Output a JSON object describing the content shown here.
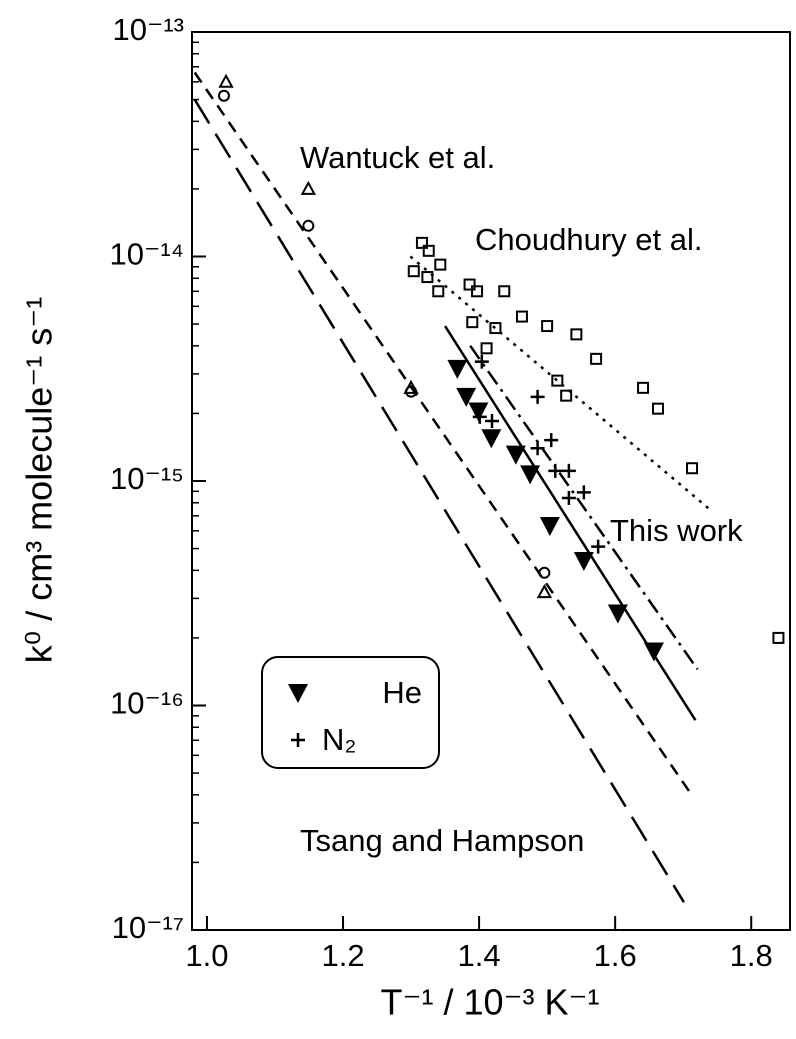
{
  "chart_data": {
    "type": "scatter",
    "xlabel": "T⁻¹ / 10⁻³ K⁻¹",
    "ylabel": "k⁰ / cm³ molecule⁻¹ s⁻¹",
    "xlim": [
      0.978,
      1.857
    ],
    "ylim": [
      1e-17,
      1e-13
    ],
    "log_y": true,
    "xticks": [
      {
        "value": 1.0,
        "label": "1.0"
      },
      1.2,
      1.4,
      1.6,
      1.8
    ],
    "yticks": [
      {
        "value": 1e-17,
        "label": "10⁻¹⁷"
      },
      {
        "value": 1e-16,
        "label": "10⁻¹⁶"
      },
      {
        "value": 1e-15,
        "label": "10⁻¹⁵"
      },
      {
        "value": 1e-14,
        "label": "10⁻¹⁴"
      },
      {
        "value": 1e-13,
        "label": "10⁻¹³"
      }
    ],
    "series": [
      {
        "name": "He",
        "marker": "triangle-down-filled",
        "color": "#000000",
        "x": [
          1.368,
          1.381,
          1.399,
          1.418,
          1.454,
          1.475,
          1.504,
          1.554,
          1.604,
          1.657
        ],
        "values": [
          3.16e-15,
          2.37e-15,
          2.04e-15,
          1.55e-15,
          1.31e-15,
          1.07e-15,
          6.3e-16,
          4.4e-16,
          2.57e-16,
          1.74e-16
        ]
      },
      {
        "name": "N₂",
        "marker": "plus",
        "color": "#000000",
        "x": [
          1.404,
          1.486,
          1.401,
          1.419,
          1.486,
          1.506,
          1.512,
          1.532,
          1.532,
          1.554,
          1.575
        ],
        "values": [
          3.4e-15,
          2.37e-15,
          1.93e-15,
          1.85e-15,
          1.4e-15,
          1.52e-15,
          1.11e-15,
          1.11e-15,
          8.4e-16,
          8.9e-16,
          5.1e-16
        ]
      }
    ],
    "other_series": [
      {
        "marker": "square-open",
        "color": "#000000",
        "x": [
          1.316,
          1.326,
          1.343,
          1.304,
          1.324,
          1.34,
          1.386,
          1.397,
          1.437,
          1.39,
          1.424,
          1.463,
          1.5,
          1.543,
          1.572,
          1.411,
          1.515,
          1.528,
          1.641,
          1.663,
          1.713,
          1.84
        ],
        "values": [
          1.15e-14,
          1.06e-14,
          9.2e-15,
          8.6e-15,
          8.1e-15,
          7e-15,
          7.5e-15,
          7e-15,
          7e-15,
          5.1e-15,
          4.8e-15,
          5.4e-15,
          4.9e-15,
          4.5e-15,
          3.5e-15,
          3.9e-15,
          2.8e-15,
          2.4e-15,
          2.6e-15,
          2.1e-15,
          1.14e-15,
          2e-16
        ]
      },
      {
        "marker": "triangle-open",
        "color": "#000000",
        "x": [
          1.028,
          1.149,
          1.3,
          1.496
        ],
        "values": [
          6e-14,
          2e-14,
          2.6e-15,
          3.2e-16
        ]
      },
      {
        "marker": "circle-open",
        "color": "#000000",
        "x": [
          1.025,
          1.149,
          1.3,
          1.496
        ],
        "values": [
          5.2e-14,
          1.37e-14,
          2.5e-15,
          3.9e-16
        ]
      },
      {
        "line": "short-dash",
        "color": "#000000",
        "x": [
          0.982,
          1.71
        ],
        "values": [
          6.6e-14,
          4.1e-17
        ]
      },
      {
        "line": "long-dash",
        "color": "#000000",
        "x": [
          0.982,
          1.701
        ],
        "values": [
          5e-14,
          1.33e-17
        ]
      },
      {
        "line": "solid",
        "color": "#000000",
        "x": [
          1.35,
          1.718
        ],
        "values": [
          4.9e-15,
          8.6e-17
        ]
      },
      {
        "line": "dash-dot",
        "color": "#000000",
        "x": [
          1.387,
          1.721
        ],
        "values": [
          4e-15,
          1.45e-16
        ]
      },
      {
        "line": "dotted",
        "color": "#000000",
        "x": [
          1.299,
          1.743
        ],
        "values": [
          1e-14,
          7.3e-16
        ]
      }
    ],
    "annotations": [
      "Wantuck et al.",
      "Choudhury et al.",
      "This work",
      "Tsang and Hampson"
    ]
  }
}
